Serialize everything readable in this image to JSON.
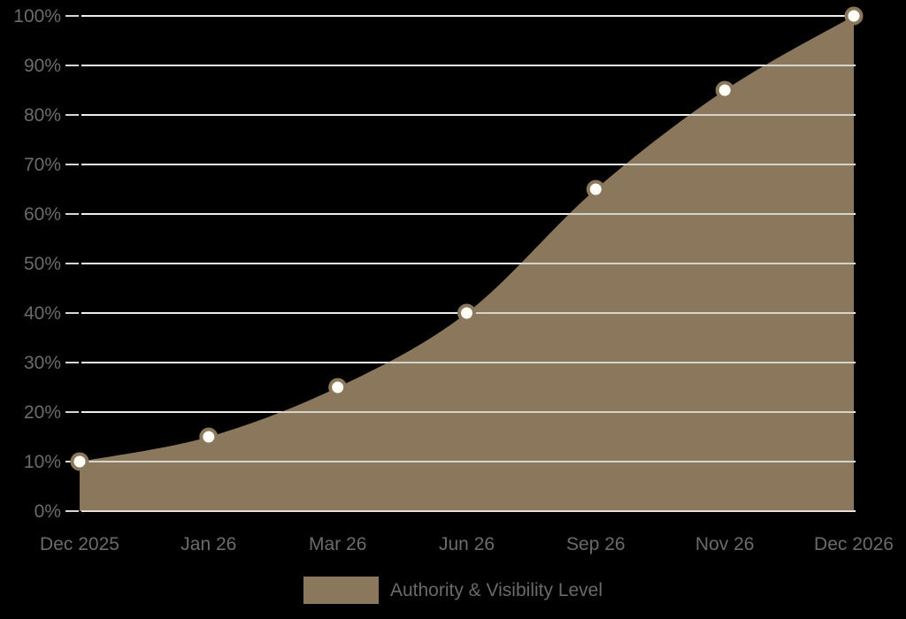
{
  "background": "#000000",
  "chart_data": {
    "type": "area",
    "title": "",
    "xlabel": "",
    "ylabel": "",
    "categories": [
      "Dec 2025",
      "Jan 26",
      "Mar 26",
      "Jun 26",
      "Sep 26",
      "Nov 26",
      "Dec 2026"
    ],
    "values": [
      10,
      15,
      25,
      40,
      65,
      85,
      100
    ],
    "series_name": "Authority & Visibility Level",
    "ylim": [
      0,
      100
    ],
    "y_tick_values": [
      0,
      10,
      20,
      30,
      40,
      50,
      60,
      70,
      80,
      90,
      100
    ],
    "y_ticks": [
      "0%",
      "10%",
      "20%",
      "30%",
      "40%",
      "50%",
      "60%",
      "70%",
      "80%",
      "90%",
      "100%"
    ],
    "grid": true,
    "smooth": true,
    "legend_position": "bottom",
    "colors": {
      "fill": "#8B775C",
      "marker_fill": "#FFFEF8",
      "marker_border": "#8B775C",
      "grid": "#EFEEE9",
      "grid_over_fill": "#D5D3CE",
      "tick_mark": "#D8D7D2",
      "axis_label": "#6B6B6B",
      "legend_text": "#6A6A6A"
    }
  },
  "legend": {
    "label": "Authority & Visibility Level"
  }
}
